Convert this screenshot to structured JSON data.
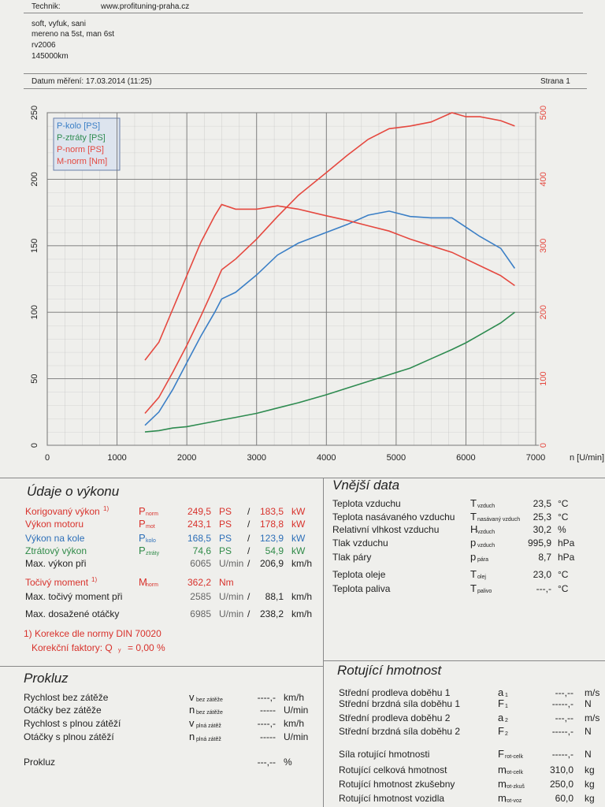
{
  "header": {
    "technik_label": "Technik:",
    "technik": "www.profituning-praha.cz",
    "notes": [
      "soft, vyfuk, sani",
      "mereno na 5st, man 6st",
      "rv2006",
      "145000km"
    ],
    "date": "Datum měření: 17.03.2014 (11:25)",
    "page": "Strana 1"
  },
  "chart_data": {
    "type": "line",
    "x_label": "n [U/min]",
    "x": [
      1400,
      1600,
      1800,
      2000,
      2200,
      2400,
      2500,
      2700,
      3000,
      3300,
      3600,
      4000,
      4300,
      4600,
      4900,
      5200,
      5500,
      5800,
      6000,
      6200,
      6500,
      6700
    ],
    "series": [
      {
        "name": "P-kolo [PS]",
        "color": "#3b7fc6",
        "values": [
          15,
          25,
          42,
          62,
          82,
          100,
          110,
          115,
          128,
          143,
          152,
          160,
          166,
          173,
          176,
          172,
          171,
          171,
          164,
          157,
          148,
          133
        ]
      },
      {
        "name": "P-ztráty [PS]",
        "color": "#2e8b50",
        "values": [
          10,
          11,
          13,
          14,
          16,
          18,
          19,
          21,
          24,
          28,
          32,
          38,
          43,
          48,
          53,
          58,
          65,
          72,
          77,
          83,
          92,
          100
        ]
      },
      {
        "name": "P-norm [PS]",
        "color": "#e5483f",
        "values": [
          24,
          36,
          55,
          75,
          97,
          120,
          132,
          140,
          155,
          172,
          188,
          205,
          218,
          230,
          238,
          240,
          243,
          250,
          247,
          247,
          244,
          240
        ]
      },
      {
        "name": "M-norm [Nm]",
        "color": "#e5483f",
        "axis": "y2",
        "values": [
          128,
          155,
          205,
          255,
          305,
          345,
          362,
          355,
          355,
          360,
          355,
          345,
          338,
          330,
          322,
          310,
          300,
          290,
          280,
          270,
          255,
          240
        ]
      }
    ],
    "xlim": [
      0,
      7000
    ],
    "xticks": [
      0,
      1000,
      2000,
      3000,
      4000,
      5000,
      6000,
      7000
    ],
    "ylim": [
      0,
      250
    ],
    "yticks": [
      0,
      50,
      100,
      150,
      200,
      250
    ],
    "y2lim": [
      0,
      500
    ],
    "y2ticks": [
      0,
      100,
      200,
      300,
      400,
      500
    ],
    "grid": true,
    "legend": "top-left"
  },
  "vykon": {
    "title": "Údaje o výkonu",
    "rows": [
      {
        "label": "Korigovaný výkon",
        "note": "1)",
        "sym": "P",
        "sub": "norm",
        "value": "249,5",
        "unit": "PS",
        "sep": "/",
        "value2": "183,5",
        "unit2": "kW"
      },
      {
        "label": "Výkon motoru",
        "sym": "P",
        "sub": "mot",
        "value": "243,1",
        "unit": "PS",
        "sep": "/",
        "value2": "178,8",
        "unit2": "kW"
      },
      {
        "label": "Výkon na kole",
        "sym": "P",
        "sub": "kolo",
        "value": "168,5",
        "unit": "PS",
        "sep": "/",
        "value2": "123,9",
        "unit2": "kW"
      },
      {
        "label": "Ztrátový výkon",
        "sym": "P",
        "sub": "ztráty",
        "value": "74,6",
        "unit": "PS",
        "sep": "/",
        "value2": "54,9",
        "unit2": "kW"
      },
      {
        "label": "Max. výkon při",
        "value": "6065",
        "unit": "U/min",
        "sep": "/",
        "value2": "206,9",
        "unit2": "km/h"
      },
      {
        "label": "Točivý moment",
        "note": "1)",
        "sym": "M",
        "sub": "norm",
        "value": "362,2",
        "unit": "Nm"
      },
      {
        "label": "Max. točivý moment při",
        "value": "2585",
        "unit": "U/min",
        "sep": "/",
        "value2": "88,1",
        "unit2": "km/h"
      },
      {
        "label": "Max. dosažené otáčky",
        "value": "6985",
        "unit": "U/min",
        "sep": "/",
        "value2": "238,2",
        "unit2": "km/h"
      }
    ],
    "footnote": "1) Korekce dle normy DIN 70020",
    "factor": {
      "label": "Korekční faktory: Q",
      "sub": "y",
      "value": "=   0,00 %"
    }
  },
  "vnejsi": {
    "title": "Vnější data",
    "rows": [
      {
        "label": "Teplota vzduchu",
        "sym": "T",
        "sub": "vzduch",
        "value": "23,5",
        "unit": "°C"
      },
      {
        "label": "Teplota nasávaného vzduchu",
        "sym": "T",
        "sub": "nasávaný vzduch",
        "value": "25,3",
        "unit": "°C"
      },
      {
        "label": "Relativní vlhkost vzduchu",
        "sym": "H",
        "sub": "vzduch",
        "value": "30,2",
        "unit": "%"
      },
      {
        "label": "Tlak vzduchu",
        "sym": "p",
        "sub": "vzduch",
        "value": "995,9",
        "unit": "hPa"
      },
      {
        "label": "Tlak páry",
        "sym": "p",
        "sub": "pára",
        "value": "8,7",
        "unit": "hPa"
      },
      {
        "label": "Teplota oleje",
        "sym": "T",
        "sub": "olej",
        "value": "23,0",
        "unit": "°C"
      },
      {
        "label": "Teplota paliva",
        "sym": "T",
        "sub": "palivo",
        "value": "---,-",
        "unit": "°C"
      }
    ]
  },
  "prokluz": {
    "title": "Prokluz",
    "rows": [
      {
        "label": "Rychlost bez zátěže",
        "sym": "v",
        "sub": "bez zátěže",
        "value": "----,-",
        "unit": "km/h"
      },
      {
        "label": "Otáčky bez zátěže",
        "sym": "n",
        "sub": "bez zátěže",
        "value": "-----",
        "unit": "U/min"
      },
      {
        "label": "Rychlost s plnou zátěží",
        "sym": "v",
        "sub": "plná zátěž",
        "value": "----,-",
        "unit": "km/h"
      },
      {
        "label": "Otáčky s plnou zátěží",
        "sym": "n",
        "sub": "plná zátěž",
        "value": "-----",
        "unit": "U/min"
      },
      {
        "label": "Prokluz",
        "value": "---,--",
        "unit": "%"
      }
    ]
  },
  "rotujici": {
    "title": "Rotující hmotnost",
    "rows": [
      {
        "label": "Střední prodleva doběhu 1",
        "sym": "a",
        "sub": "1",
        "value": "---,--",
        "unit": "m/s"
      },
      {
        "label": "Střední brzdná síla doběhu 1",
        "sym": "F",
        "sub": "1",
        "value": "-----,-",
        "unit": "N"
      },
      {
        "label": "Střední prodleva doběhu 2",
        "sym": "a",
        "sub": "2",
        "value": "---,--",
        "unit": "m/s"
      },
      {
        "label": "Střední brzdná síla doběhu 2",
        "sym": "F",
        "sub": "2",
        "value": "-----,-",
        "unit": "N"
      },
      {
        "label": "Síla rotující hmotnosti",
        "sym": "F",
        "sub": "rot-celk",
        "value": "-----,-",
        "unit": "N"
      },
      {
        "label": "Rotující celková hmotnost",
        "sym": "m",
        "sub": "rot-celk",
        "value": "310,0",
        "unit": "kg"
      },
      {
        "label": "Rotující hmotnost zkušebny",
        "sym": "m",
        "sub": "rot-zkuš",
        "value": "250,0",
        "unit": "kg"
      },
      {
        "label": "Rotující hmotnost vozidla",
        "sym": "m",
        "sub": "rot-voz",
        "value": "60,0",
        "unit": "kg"
      }
    ]
  }
}
